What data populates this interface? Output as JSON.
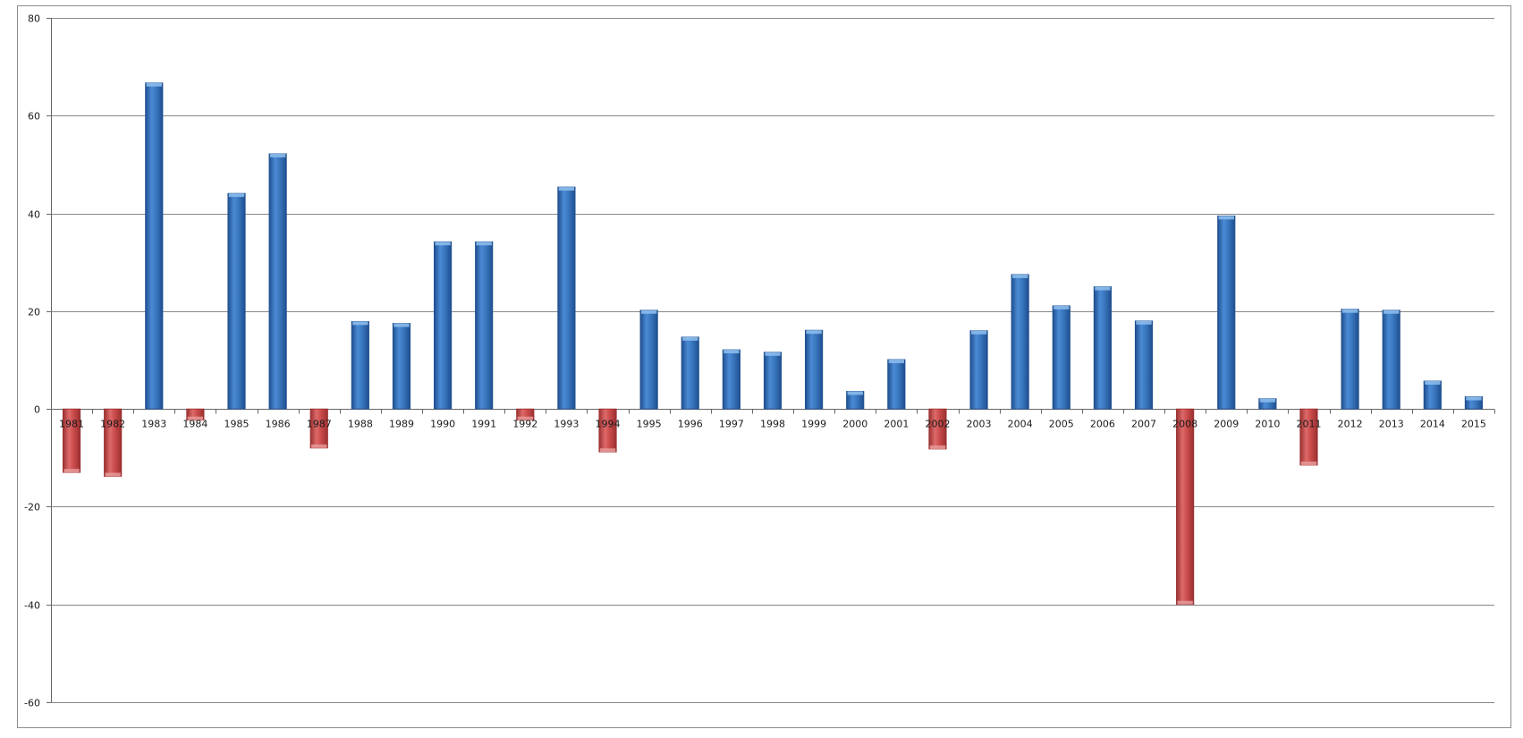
{
  "chart_data": {
    "type": "bar",
    "title": "",
    "xlabel": "",
    "ylabel": "",
    "ylim": [
      -60,
      80
    ],
    "yticks": [
      80,
      60,
      40,
      20,
      0,
      -20,
      -40,
      -60
    ],
    "ytick_labels": [
      "80",
      "60",
      "40",
      "20",
      "0",
      "-20",
      "-40",
      "-60"
    ],
    "grid": true,
    "legend": "none",
    "categories": [
      "1981",
      "1982",
      "1983",
      "1984",
      "1985",
      "1986",
      "1987",
      "1988",
      "1989",
      "1990",
      "1991",
      "1992",
      "1993",
      "1994",
      "1995",
      "1996",
      "1997",
      "1998",
      "1999",
      "2000",
      "2001",
      "2002",
      "2003",
      "2004",
      "2005",
      "2006",
      "2007",
      "2008",
      "2009",
      "2010",
      "2011",
      "2012",
      "2013",
      "2014",
      "2015"
    ],
    "values": [
      -13,
      -13.8,
      66.7,
      -2.3,
      44.1,
      52.2,
      -8,
      17.9,
      17.5,
      34.2,
      34.2,
      -2.3,
      45.4,
      -8.8,
      20.2,
      14.7,
      12.1,
      11.6,
      16.1,
      3.6,
      10.1,
      -8.2,
      16,
      27.5,
      21.1,
      25,
      18,
      -40,
      39.5,
      2.1,
      -11.5,
      20.4,
      20.2,
      5.7,
      2.5
    ],
    "colors": {
      "positive": "#3a78c0",
      "positive_dark": "#1f4f8f",
      "positive_light": "#8fc0ee",
      "negative": "#cc4c4c",
      "negative_dark": "#9a3030",
      "negative_light": "#e89a9a",
      "grid": "#888888",
      "axis": "#666666",
      "frame": "#8c8c8c"
    }
  }
}
